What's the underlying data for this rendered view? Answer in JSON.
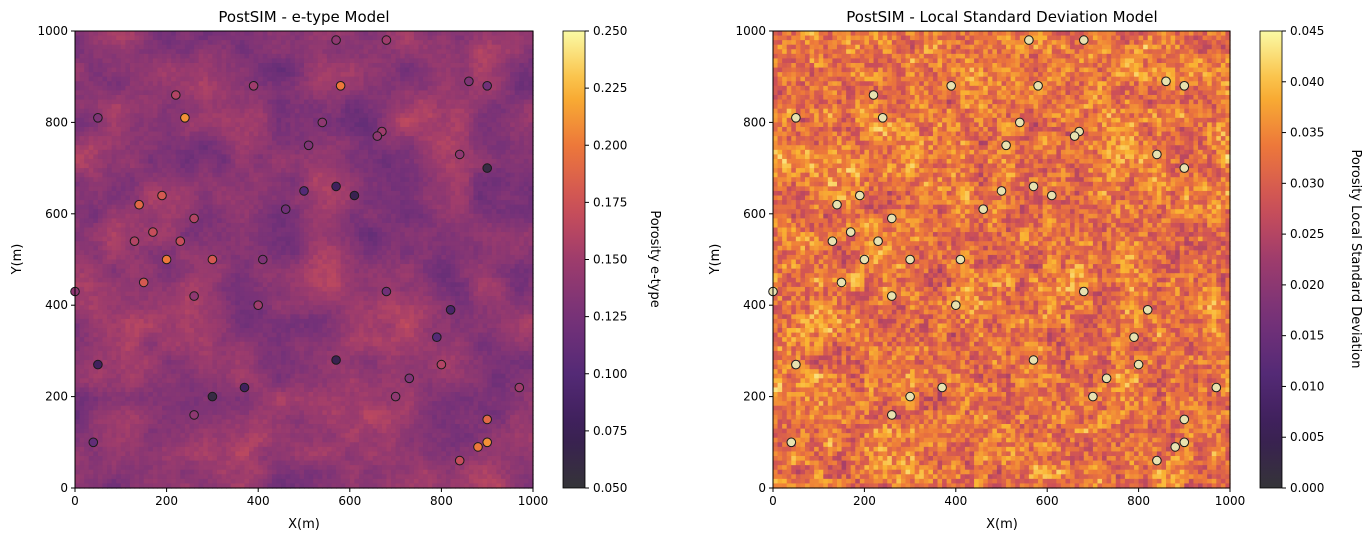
{
  "chart_data": [
    {
      "type": "heatmap",
      "title": "PostSIM - e-type Model",
      "xlabel": "X(m)",
      "ylabel": "Y(m)",
      "xlim": [
        0,
        1000
      ],
      "ylim": [
        0,
        1000
      ],
      "xticks": [
        "0",
        "200",
        "400",
        "600",
        "800",
        "1000"
      ],
      "yticks": [
        "0",
        "200",
        "400",
        "600",
        "800",
        "1000"
      ],
      "grid": false,
      "colormap": "inferno",
      "colorbar": {
        "label": "Porosity e-type",
        "range": [
          0.05,
          0.25
        ],
        "ticks": [
          "0.050",
          "0.075",
          "0.100",
          "0.125",
          "0.150",
          "0.175",
          "0.200",
          "0.225",
          "0.250"
        ]
      },
      "cells": {
        "nx": 100,
        "ny": 100,
        "value_mean": 0.14,
        "value_spread": 0.03
      },
      "marker_edge_color": "#1a1a1a",
      "marker_face": "none",
      "points": [
        [
          570,
          980,
          0.14
        ],
        [
          680,
          980,
          0.15
        ],
        [
          860,
          890,
          0.13
        ],
        [
          900,
          880,
          0.12
        ],
        [
          390,
          880,
          0.15
        ],
        [
          580,
          880,
          0.2
        ],
        [
          220,
          860,
          0.16
        ],
        [
          50,
          810,
          0.13
        ],
        [
          240,
          810,
          0.21
        ],
        [
          540,
          800,
          0.14
        ],
        [
          670,
          780,
          0.15
        ],
        [
          660,
          770,
          0.14
        ],
        [
          510,
          750,
          0.13
        ],
        [
          840,
          730,
          0.14
        ],
        [
          900,
          700,
          0.06
        ],
        [
          570,
          660,
          0.08
        ],
        [
          500,
          650,
          0.1
        ],
        [
          190,
          640,
          0.18
        ],
        [
          610,
          640,
          0.07
        ],
        [
          140,
          620,
          0.19
        ],
        [
          460,
          610,
          0.12
        ],
        [
          260,
          590,
          0.16
        ],
        [
          170,
          560,
          0.17
        ],
        [
          130,
          540,
          0.16
        ],
        [
          230,
          540,
          0.17
        ],
        [
          300,
          500,
          0.18
        ],
        [
          200,
          500,
          0.2
        ],
        [
          410,
          500,
          0.13
        ],
        [
          0,
          430,
          0.14
        ],
        [
          680,
          430,
          0.12
        ],
        [
          150,
          450,
          0.18
        ],
        [
          260,
          420,
          0.14
        ],
        [
          400,
          400,
          0.15
        ],
        [
          820,
          390,
          0.09
        ],
        [
          790,
          330,
          0.1
        ],
        [
          570,
          280,
          0.07
        ],
        [
          50,
          270,
          0.08
        ],
        [
          800,
          270,
          0.16
        ],
        [
          730,
          240,
          0.13
        ],
        [
          370,
          220,
          0.08
        ],
        [
          970,
          220,
          0.15
        ],
        [
          300,
          200,
          0.06
        ],
        [
          700,
          200,
          0.14
        ],
        [
          260,
          160,
          0.14
        ],
        [
          900,
          150,
          0.19
        ],
        [
          40,
          100,
          0.11
        ],
        [
          900,
          100,
          0.21
        ],
        [
          880,
          90,
          0.2
        ],
        [
          840,
          60,
          0.17
        ]
      ]
    },
    {
      "type": "heatmap",
      "title": "PostSIM - Local Standard Deviation Model",
      "xlabel": "X(m)",
      "ylabel": "Y(m)",
      "xlim": [
        0,
        1000
      ],
      "ylim": [
        0,
        1000
      ],
      "xticks": [
        "0",
        "200",
        "400",
        "600",
        "800",
        "1000"
      ],
      "yticks": [
        "0",
        "200",
        "400",
        "600",
        "800",
        "1000"
      ],
      "grid": false,
      "colormap": "inferno",
      "colorbar": {
        "label": "Porosity Local Standard Deviation",
        "range": [
          0.0,
          0.045
        ],
        "ticks": [
          "0.000",
          "0.005",
          "0.010",
          "0.015",
          "0.020",
          "0.025",
          "0.030",
          "0.035",
          "0.040",
          "0.045"
        ]
      },
      "cells": {
        "nx": 100,
        "ny": 100,
        "value_mean": 0.033,
        "value_spread": 0.009
      },
      "marker_edge_color": "#1a1a1a",
      "marker_face": "#e8e2b0",
      "points": [
        [
          560,
          980,
          0.04
        ],
        [
          680,
          980,
          0.04
        ],
        [
          860,
          890,
          0.04
        ],
        [
          900,
          880,
          0.04
        ],
        [
          390,
          880,
          0.04
        ],
        [
          580,
          880,
          0.04
        ],
        [
          220,
          860,
          0.04
        ],
        [
          50,
          810,
          0.04
        ],
        [
          240,
          810,
          0.04
        ],
        [
          540,
          800,
          0.04
        ],
        [
          670,
          780,
          0.04
        ],
        [
          660,
          770,
          0.04
        ],
        [
          510,
          750,
          0.04
        ],
        [
          840,
          730,
          0.04
        ],
        [
          900,
          700,
          0.04
        ],
        [
          570,
          660,
          0.04
        ],
        [
          500,
          650,
          0.04
        ],
        [
          190,
          640,
          0.04
        ],
        [
          610,
          640,
          0.04
        ],
        [
          140,
          620,
          0.04
        ],
        [
          460,
          610,
          0.04
        ],
        [
          260,
          590,
          0.04
        ],
        [
          170,
          560,
          0.04
        ],
        [
          130,
          540,
          0.04
        ],
        [
          230,
          540,
          0.04
        ],
        [
          300,
          500,
          0.04
        ],
        [
          200,
          500,
          0.04
        ],
        [
          410,
          500,
          0.04
        ],
        [
          0,
          430,
          0.04
        ],
        [
          680,
          430,
          0.04
        ],
        [
          150,
          450,
          0.04
        ],
        [
          260,
          420,
          0.04
        ],
        [
          400,
          400,
          0.04
        ],
        [
          820,
          390,
          0.04
        ],
        [
          790,
          330,
          0.04
        ],
        [
          570,
          280,
          0.04
        ],
        [
          50,
          270,
          0.04
        ],
        [
          800,
          270,
          0.04
        ],
        [
          730,
          240,
          0.04
        ],
        [
          370,
          220,
          0.04
        ],
        [
          970,
          220,
          0.04
        ],
        [
          300,
          200,
          0.04
        ],
        [
          700,
          200,
          0.04
        ],
        [
          260,
          160,
          0.04
        ],
        [
          900,
          150,
          0.04
        ],
        [
          40,
          100,
          0.04
        ],
        [
          900,
          100,
          0.04
        ],
        [
          880,
          90,
          0.04
        ],
        [
          840,
          60,
          0.04
        ]
      ]
    }
  ]
}
